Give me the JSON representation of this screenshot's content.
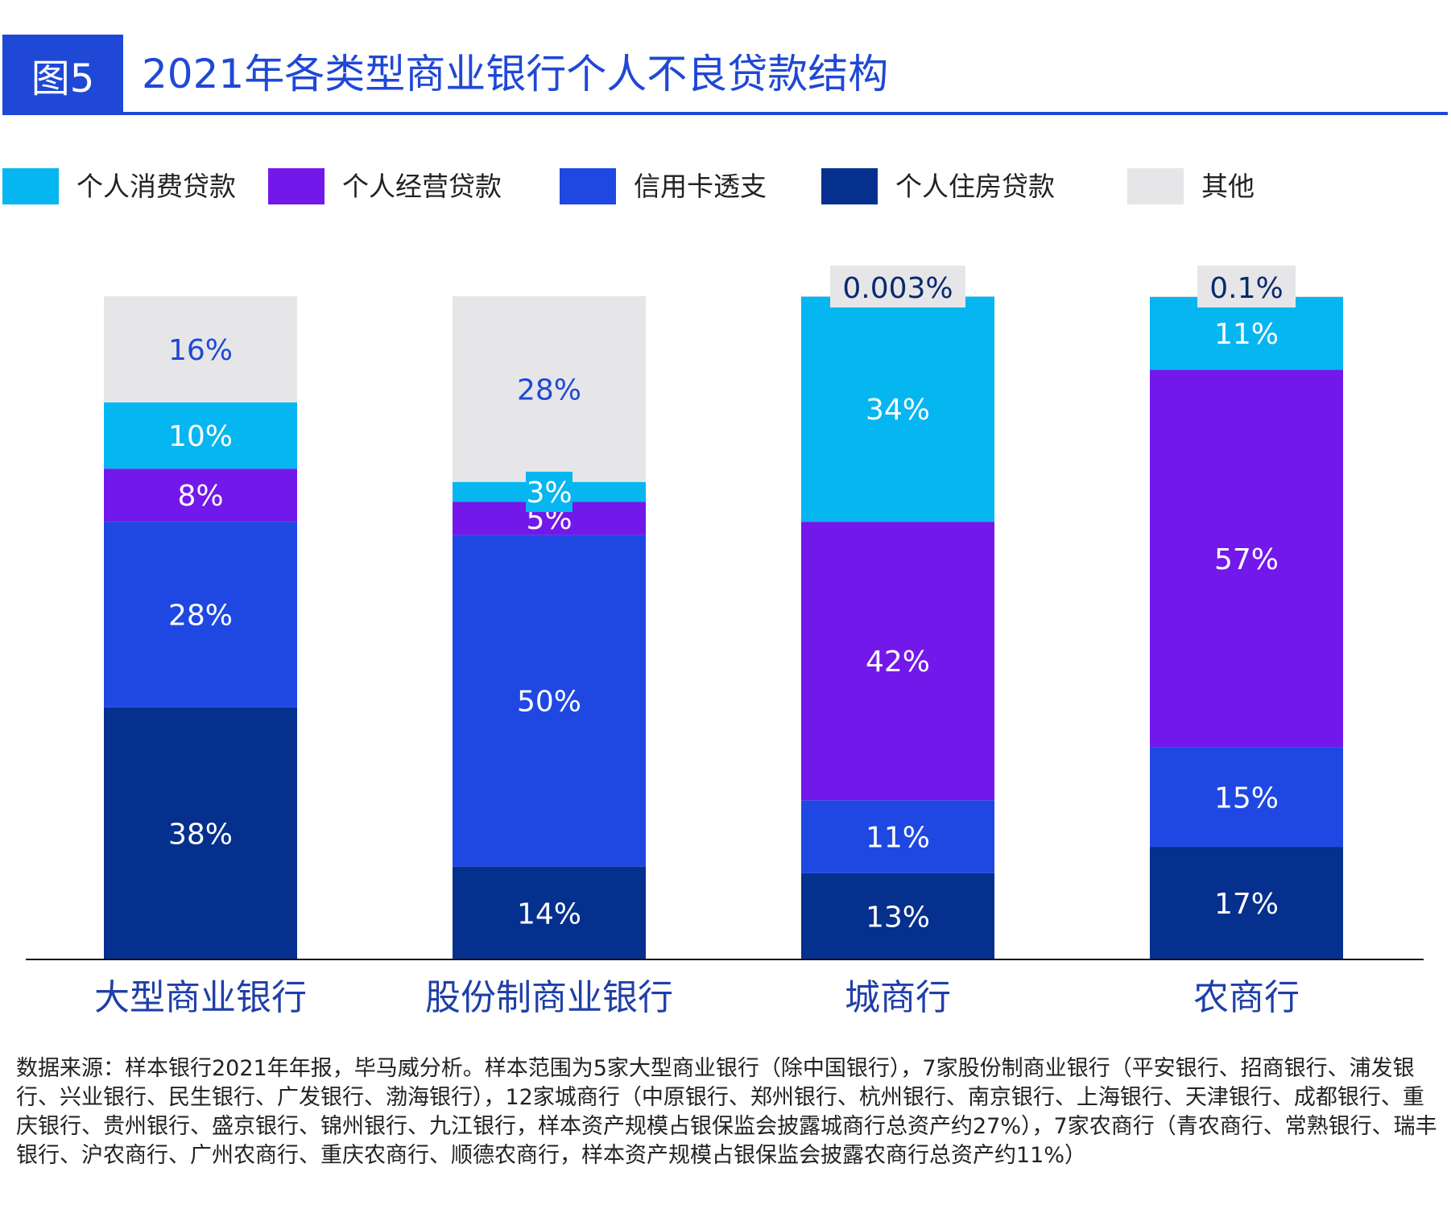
{
  "figure": {
    "badge": "图5",
    "title": "2021年各类型商业银行个人不良贷款结构",
    "source": "数据来源：样本银行2021年年报，毕马威分析。样本范围为5家大型商业银行（除中国银行），7家股份制商业银行（平安银行、招商银行、浦发银行、兴业银行、民生银行、广发银行、渤海银行），12家城商行（中原银行、郑州银行、杭州银行、南京银行、上海银行、天津银行、成都银行、重庆银行、贵州银行、盛京银行、锦州银行、九江银行，样本资产规模占银保监会披露城商行总资产约27%），7家农商行（青农商行、常熟银行、瑞丰银行、沪农商行、广州农商行、重庆农商行、顺德农商行，样本资产规模占银保监会披露农商行总资产约11%）"
  },
  "colors": {
    "accent": "#1f48d6",
    "consumer": "#06b6f0",
    "business": "#7318ea",
    "credit_card": "#1f48e3",
    "mortgage": "#06308e",
    "other": "#e6e6e8"
  },
  "chart_data": {
    "type": "bar",
    "stacked": true,
    "percent": true,
    "legend_position": "top",
    "categories": [
      "大型商业银行",
      "股份制商业银行",
      "城商行",
      "农商行"
    ],
    "series": [
      {
        "name": "个人住房贷款",
        "color_key": "mortgage",
        "values": [
          38,
          14,
          13,
          17
        ],
        "labels": [
          "38%",
          "14%",
          "13%",
          "17%"
        ]
      },
      {
        "name": "信用卡透支",
        "color_key": "credit_card",
        "values": [
          28,
          50,
          11,
          15
        ],
        "labels": [
          "28%",
          "50%",
          "11%",
          "15%"
        ]
      },
      {
        "name": "个人经营贷款",
        "color_key": "business",
        "values": [
          8,
          5,
          42,
          57
        ],
        "labels": [
          "8%",
          "5%",
          "42%",
          "57%"
        ]
      },
      {
        "name": "个人消费贷款",
        "color_key": "consumer",
        "values": [
          10,
          3,
          34,
          11
        ],
        "labels": [
          "10%",
          "3%",
          "34%",
          "11%"
        ]
      },
      {
        "name": "其他",
        "color_key": "other",
        "values": [
          16,
          28,
          0.003,
          0.1
        ],
        "labels": [
          "16%",
          "28%",
          "0.003%",
          "0.1%"
        ]
      }
    ],
    "legend_order": [
      "个人消费贷款",
      "个人经营贷款",
      "信用卡透支",
      "个人住房贷款",
      "其他"
    ],
    "ylim": [
      0,
      100
    ],
    "grid": false
  }
}
